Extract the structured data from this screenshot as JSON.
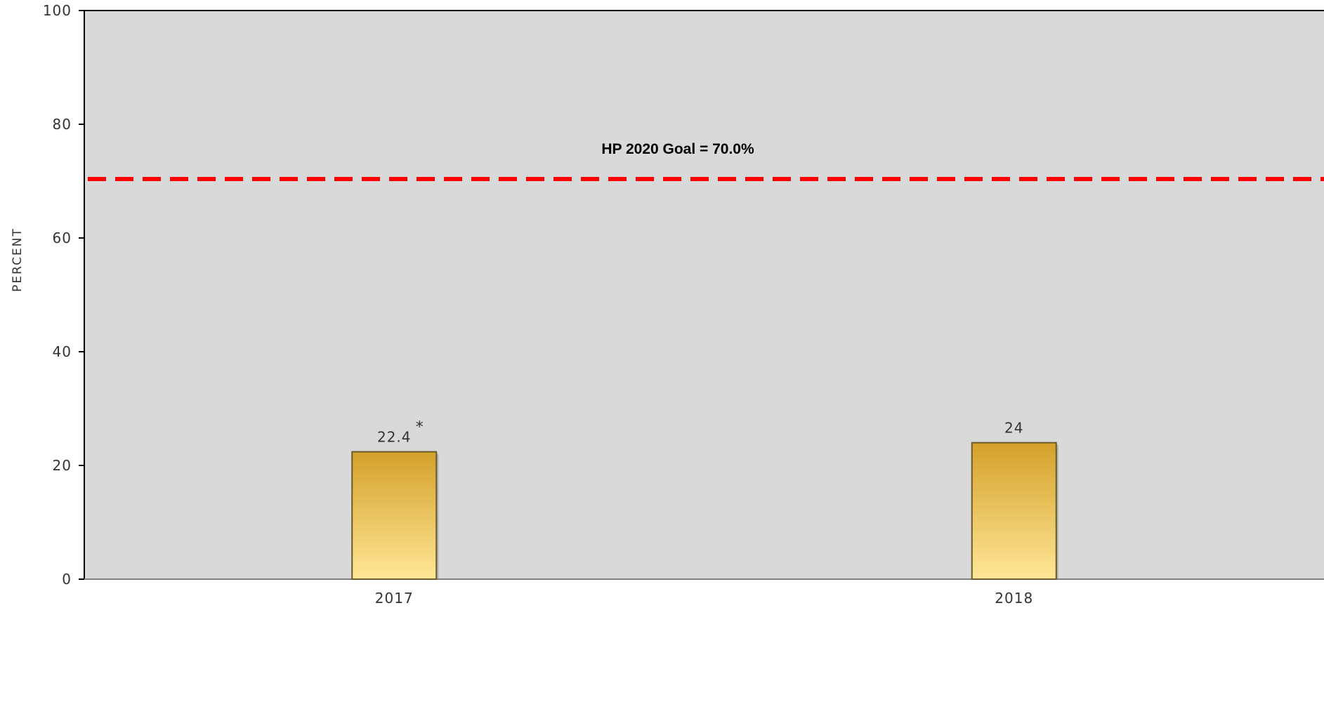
{
  "chart_data": {
    "type": "bar",
    "categories": [
      "2017",
      "2018"
    ],
    "values": [
      22.4,
      24
    ],
    "data_labels": [
      "22.4",
      "24"
    ],
    "value_footnotes": [
      "*",
      ""
    ],
    "ylabel": "PERCENT",
    "ylim": [
      0,
      100
    ],
    "yticks": [
      "0",
      "20",
      "40",
      "60",
      "80",
      "100"
    ],
    "grid": false,
    "plot_background": "#d9d9d9",
    "bar_color_top": "#d4a12a",
    "bar_color_bottom": "#ffe696",
    "reference_line": {
      "value": 70.0,
      "label": "HP 2020 Goal = 70.0%",
      "color": "#ff0000",
      "style": "dashed"
    }
  }
}
